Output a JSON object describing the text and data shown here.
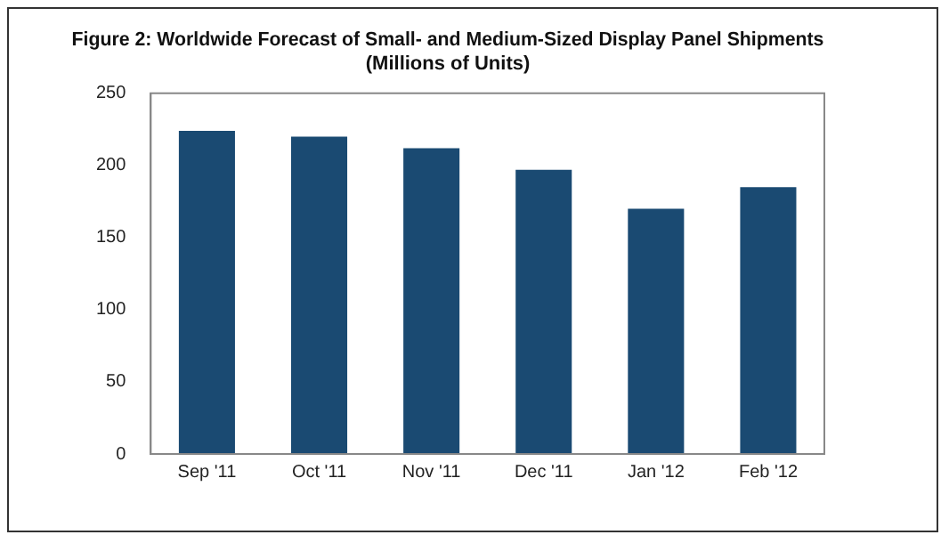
{
  "chart_data": {
    "type": "bar",
    "title": [
      "Figure 2: Worldwide Forecast of Small- and Medium-Sized Display Panel Shipments",
      "(Millions of Units)"
    ],
    "categories": [
      "Sep '11",
      "Oct '11",
      "Nov '11",
      "Dec '11",
      "Jan '12",
      "Feb '12"
    ],
    "values": [
      224,
      220,
      212,
      197,
      170,
      185
    ],
    "color": "#1a4a72",
    "ylim": [
      0,
      250
    ],
    "yticks": [
      0,
      50,
      100,
      150,
      200,
      250
    ],
    "grid": false,
    "legend": false
  }
}
